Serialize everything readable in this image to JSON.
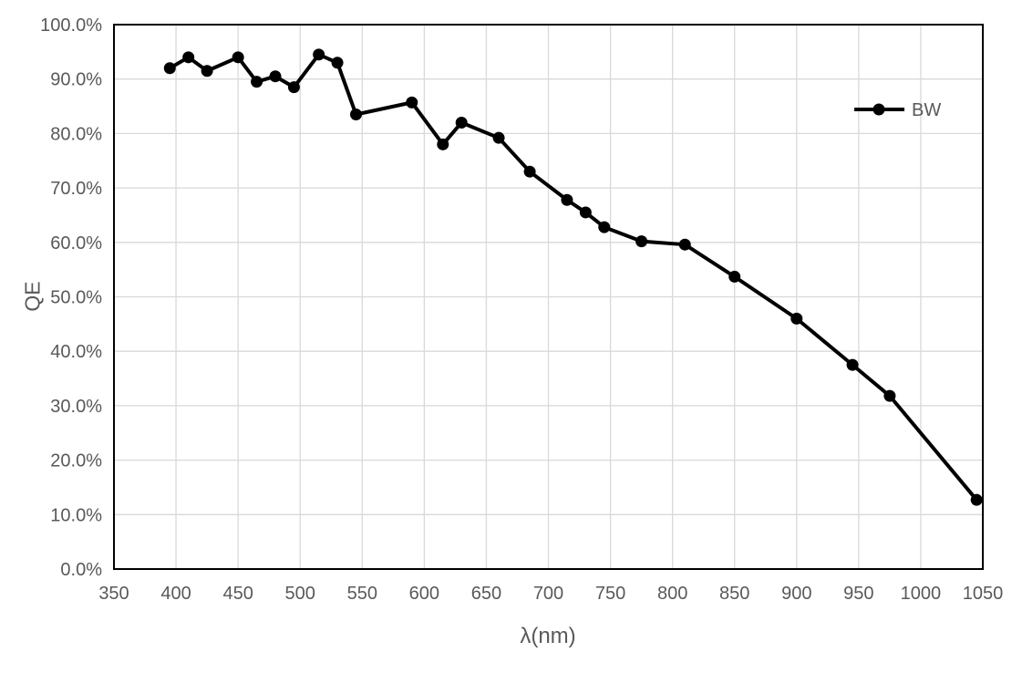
{
  "chart_data": {
    "type": "line",
    "title": "",
    "xlabel": "λ(nm)",
    "ylabel": "QE",
    "xlim": [
      350,
      1050
    ],
    "ylim_percent": [
      0,
      100
    ],
    "x_ticks": [
      350,
      400,
      450,
      500,
      550,
      600,
      650,
      700,
      750,
      800,
      850,
      900,
      950,
      1000,
      1050
    ],
    "y_tick_values": [
      0,
      10,
      20,
      30,
      40,
      50,
      60,
      70,
      80,
      90,
      100
    ],
    "y_tick_labels": [
      "0.0%",
      "10.0%",
      "20.0%",
      "30.0%",
      "40.0%",
      "50.0%",
      "60.0%",
      "70.0%",
      "80.0%",
      "90.0%",
      "100.0%"
    ],
    "grid": true,
    "legend": {
      "position": "inside-top-right",
      "entries": [
        "BW"
      ]
    },
    "series": [
      {
        "name": "BW",
        "color": "#000000",
        "marker": "circle",
        "x": [
          395,
          410,
          425,
          450,
          465,
          480,
          495,
          515,
          530,
          545,
          590,
          615,
          630,
          660,
          685,
          715,
          730,
          745,
          775,
          810,
          850,
          900,
          945,
          975,
          1045
        ],
        "y_percent": [
          92.0,
          94.0,
          91.5,
          94.0,
          89.5,
          90.5,
          88.5,
          94.5,
          93.0,
          83.5,
          85.7,
          78.0,
          82.0,
          79.2,
          73.0,
          67.8,
          65.5,
          62.8,
          60.2,
          59.6,
          53.7,
          46.0,
          37.5,
          31.8,
          12.7
        ]
      }
    ],
    "colors": {
      "axis_text": "#595959",
      "gridline": "#d9d9d9",
      "plot_border": "#000000",
      "background": "#ffffff"
    }
  }
}
